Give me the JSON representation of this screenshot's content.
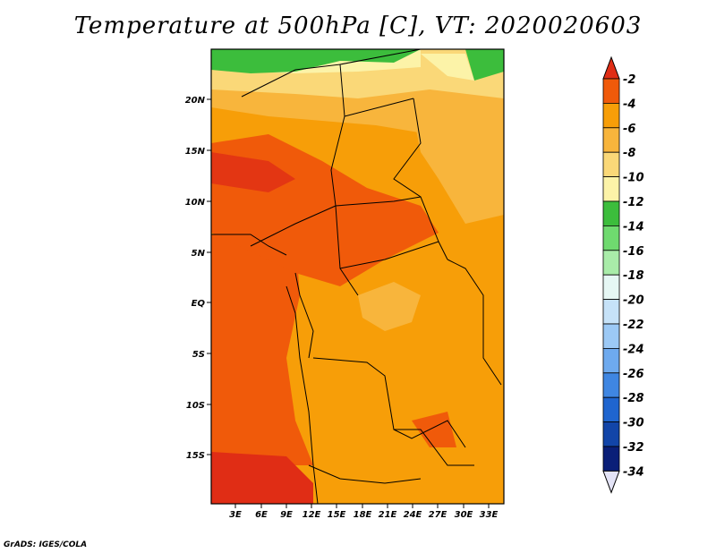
{
  "title": "Temperature at 500hPa [C], VT: 2020020603",
  "credit": "GrADS: IGES/COLA",
  "map": {
    "lat_labels": [
      "20N",
      "15N",
      "10N",
      "5N",
      "EQ",
      "5S",
      "10S",
      "15S"
    ],
    "lon_labels": [
      "3E",
      "6E",
      "9E",
      "12E",
      "15E",
      "18E",
      "21E",
      "24E",
      "27E",
      "30E",
      "33E"
    ]
  },
  "colorbar": {
    "labels": [
      "-2",
      "-4",
      "-6",
      "-8",
      "-10",
      "-12",
      "-14",
      "-16",
      "-18",
      "-20",
      "-22",
      "-24",
      "-26",
      "-28",
      "-30",
      "-32",
      "-34"
    ],
    "colors": [
      "#e02d15",
      "#f05a0a",
      "#f79e08",
      "#f8b53c",
      "#fad878",
      "#fcf3a8",
      "#3cbd3c",
      "#6fda6f",
      "#a9eca9",
      "#e6f7f4",
      "#c6e2f8",
      "#9cc9f5",
      "#6eaaef",
      "#3f86e2",
      "#1f65cf",
      "#1245a8",
      "#0a1f78",
      "#e3e3f6"
    ]
  }
}
